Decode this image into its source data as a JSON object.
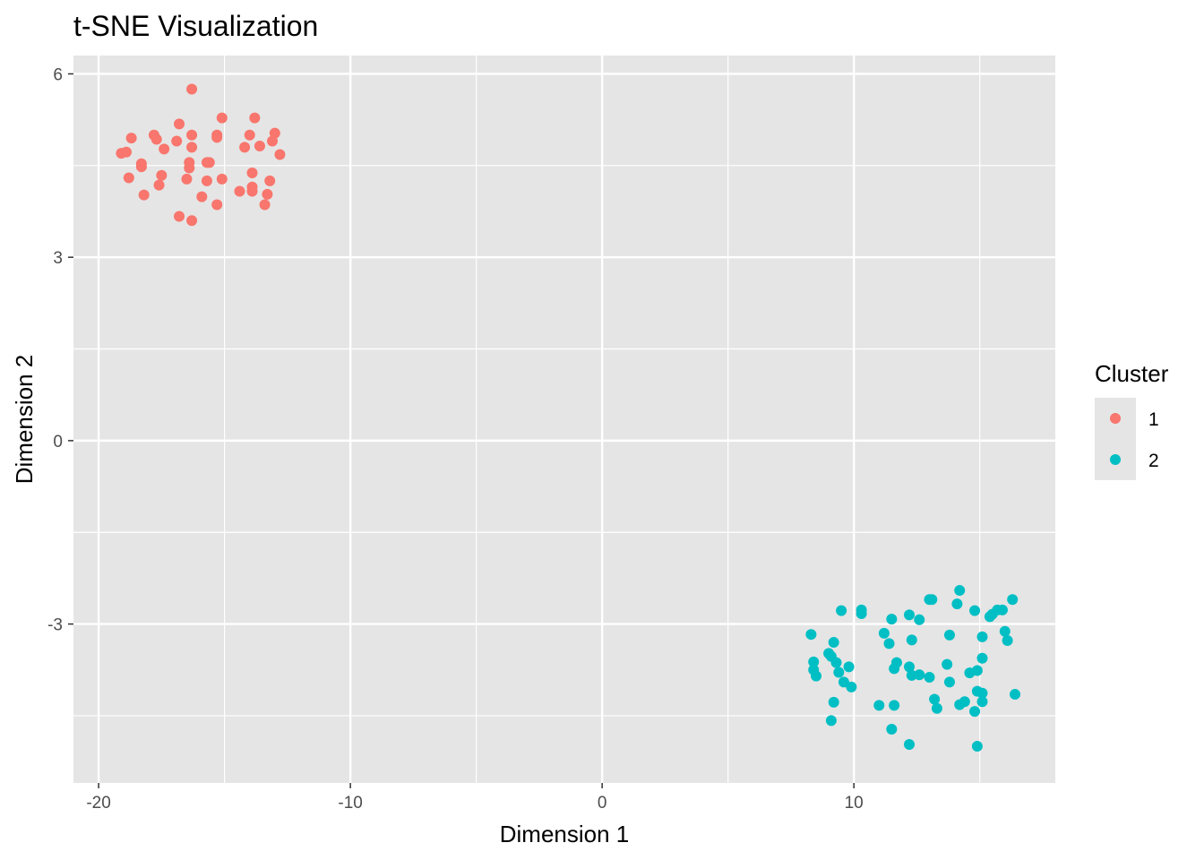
{
  "chart_data": {
    "type": "scatter",
    "title": "t-SNE Visualization",
    "xlabel": "Dimension 1",
    "ylabel": "Dimension 2",
    "xlim": [
      -21,
      18
    ],
    "ylim": [
      -5.6,
      6.3
    ],
    "x_ticks": [
      -20,
      -10,
      0,
      10
    ],
    "x_tick_labels": [
      "-20",
      "-10",
      "0",
      "10"
    ],
    "y_ticks": [
      -3,
      0,
      3,
      6
    ],
    "y_tick_labels": [
      "-3",
      "0",
      "3",
      "6"
    ],
    "grid": true,
    "panel_background": "#e5e5e5",
    "legend": {
      "title": "Cluster",
      "placement": "right"
    },
    "series": [
      {
        "name": "1",
        "color": "#f8766d",
        "points": [
          [
            -16.3,
            5.75
          ],
          [
            -15.1,
            5.28
          ],
          [
            -13.8,
            5.28
          ],
          [
            -16.8,
            5.18
          ],
          [
            -17.8,
            5.0
          ],
          [
            -16.3,
            5.0
          ],
          [
            -15.3,
            5.0
          ],
          [
            -14.0,
            5.0
          ],
          [
            -13.0,
            5.03
          ],
          [
            -18.7,
            4.95
          ],
          [
            -17.7,
            4.93
          ],
          [
            -16.9,
            4.9
          ],
          [
            -15.3,
            4.96
          ],
          [
            -13.1,
            4.9
          ],
          [
            -16.3,
            4.8
          ],
          [
            -14.2,
            4.8
          ],
          [
            -13.6,
            4.82
          ],
          [
            -17.4,
            4.77
          ],
          [
            -19.1,
            4.7
          ],
          [
            -18.9,
            4.72
          ],
          [
            -12.8,
            4.68
          ],
          [
            -16.4,
            4.55
          ],
          [
            -15.7,
            4.55
          ],
          [
            -18.3,
            4.53
          ],
          [
            -15.6,
            4.55
          ],
          [
            -18.3,
            4.48
          ],
          [
            -16.4,
            4.46
          ],
          [
            -13.9,
            4.38
          ],
          [
            -17.5,
            4.34
          ],
          [
            -18.8,
            4.3
          ],
          [
            -16.5,
            4.28
          ],
          [
            -15.1,
            4.28
          ],
          [
            -15.7,
            4.25
          ],
          [
            -13.2,
            4.25
          ],
          [
            -17.6,
            4.18
          ],
          [
            -13.9,
            4.15
          ],
          [
            -14.4,
            4.08
          ],
          [
            -13.9,
            4.08
          ],
          [
            -13.3,
            4.03
          ],
          [
            -18.2,
            4.02
          ],
          [
            -15.9,
            3.99
          ],
          [
            -15.3,
            3.86
          ],
          [
            -13.4,
            3.86
          ],
          [
            -16.8,
            3.67
          ],
          [
            -16.3,
            3.6
          ]
        ]
      },
      {
        "name": "2",
        "color": "#00bfc4",
        "points": [
          [
            14.2,
            -2.45
          ],
          [
            16.3,
            -2.6
          ],
          [
            13.0,
            -2.6
          ],
          [
            13.1,
            -2.6
          ],
          [
            14.1,
            -2.67
          ],
          [
            15.7,
            -2.77
          ],
          [
            15.9,
            -2.77
          ],
          [
            10.3,
            -2.77
          ],
          [
            9.5,
            -2.78
          ],
          [
            14.8,
            -2.78
          ],
          [
            10.3,
            -2.83
          ],
          [
            15.5,
            -2.84
          ],
          [
            15.4,
            -2.88
          ],
          [
            12.2,
            -2.85
          ],
          [
            11.5,
            -2.92
          ],
          [
            12.6,
            -2.93
          ],
          [
            16.0,
            -3.12
          ],
          [
            8.3,
            -3.17
          ],
          [
            11.2,
            -3.15
          ],
          [
            13.8,
            -3.18
          ],
          [
            15.1,
            -3.21
          ],
          [
            16.1,
            -3.27
          ],
          [
            12.3,
            -3.26
          ],
          [
            9.2,
            -3.3
          ],
          [
            11.4,
            -3.32
          ],
          [
            9.0,
            -3.48
          ],
          [
            9.1,
            -3.53
          ],
          [
            15.1,
            -3.56
          ],
          [
            8.4,
            -3.62
          ],
          [
            9.3,
            -3.63
          ],
          [
            11.7,
            -3.63
          ],
          [
            13.7,
            -3.66
          ],
          [
            9.8,
            -3.7
          ],
          [
            12.2,
            -3.7
          ],
          [
            11.6,
            -3.73
          ],
          [
            8.4,
            -3.75
          ],
          [
            14.9,
            -3.76
          ],
          [
            9.4,
            -3.79
          ],
          [
            14.6,
            -3.8
          ],
          [
            12.3,
            -3.84
          ],
          [
            12.6,
            -3.83
          ],
          [
            8.5,
            -3.85
          ],
          [
            13.0,
            -3.87
          ],
          [
            9.6,
            -3.95
          ],
          [
            13.8,
            -3.95
          ],
          [
            9.9,
            -4.03
          ],
          [
            14.9,
            -4.1
          ],
          [
            15.1,
            -4.13
          ],
          [
            16.4,
            -4.15
          ],
          [
            13.2,
            -4.23
          ],
          [
            9.2,
            -4.28
          ],
          [
            15.1,
            -4.27
          ],
          [
            14.4,
            -4.27
          ],
          [
            14.2,
            -4.32
          ],
          [
            11.0,
            -4.33
          ],
          [
            11.6,
            -4.33
          ],
          [
            13.3,
            -4.38
          ],
          [
            14.8,
            -4.43
          ],
          [
            9.1,
            -4.58
          ],
          [
            11.5,
            -4.72
          ],
          [
            12.2,
            -4.97
          ],
          [
            14.9,
            -5.0
          ]
        ]
      }
    ]
  }
}
